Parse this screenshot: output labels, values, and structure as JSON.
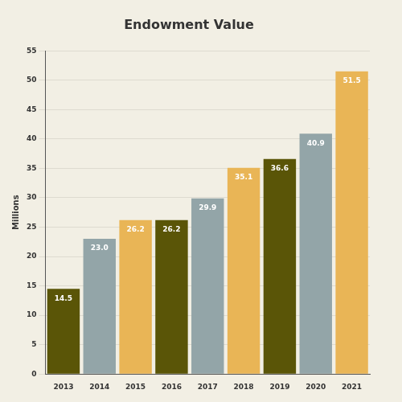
{
  "chart_data": {
    "type": "bar",
    "title": "Endowment Value",
    "y_label": "Millions",
    "categories": [
      "2013",
      "2014",
      "2015",
      "2016",
      "2017",
      "2018",
      "2019",
      "2020",
      "2021"
    ],
    "values": [
      14.5,
      23.0,
      26.2,
      26.2,
      29.9,
      35.1,
      36.6,
      40.9,
      51.5
    ],
    "value_labels": [
      "14.5",
      "23.0",
      "26.2",
      "26.2",
      "29.9",
      "35.1",
      "36.6",
      "40.9",
      "51.5"
    ],
    "colors": [
      "#5a5507",
      "#93a5a8",
      "#e9b556",
      "#5a5507",
      "#93a5a8",
      "#e9b556",
      "#5a5507",
      "#93a5a8",
      "#e9b556"
    ],
    "ylim": [
      0,
      55
    ],
    "yticks": [
      0,
      5,
      10,
      15,
      20,
      25,
      30,
      35,
      40,
      45,
      50,
      55
    ],
    "grid": true,
    "data_labels": true
  }
}
